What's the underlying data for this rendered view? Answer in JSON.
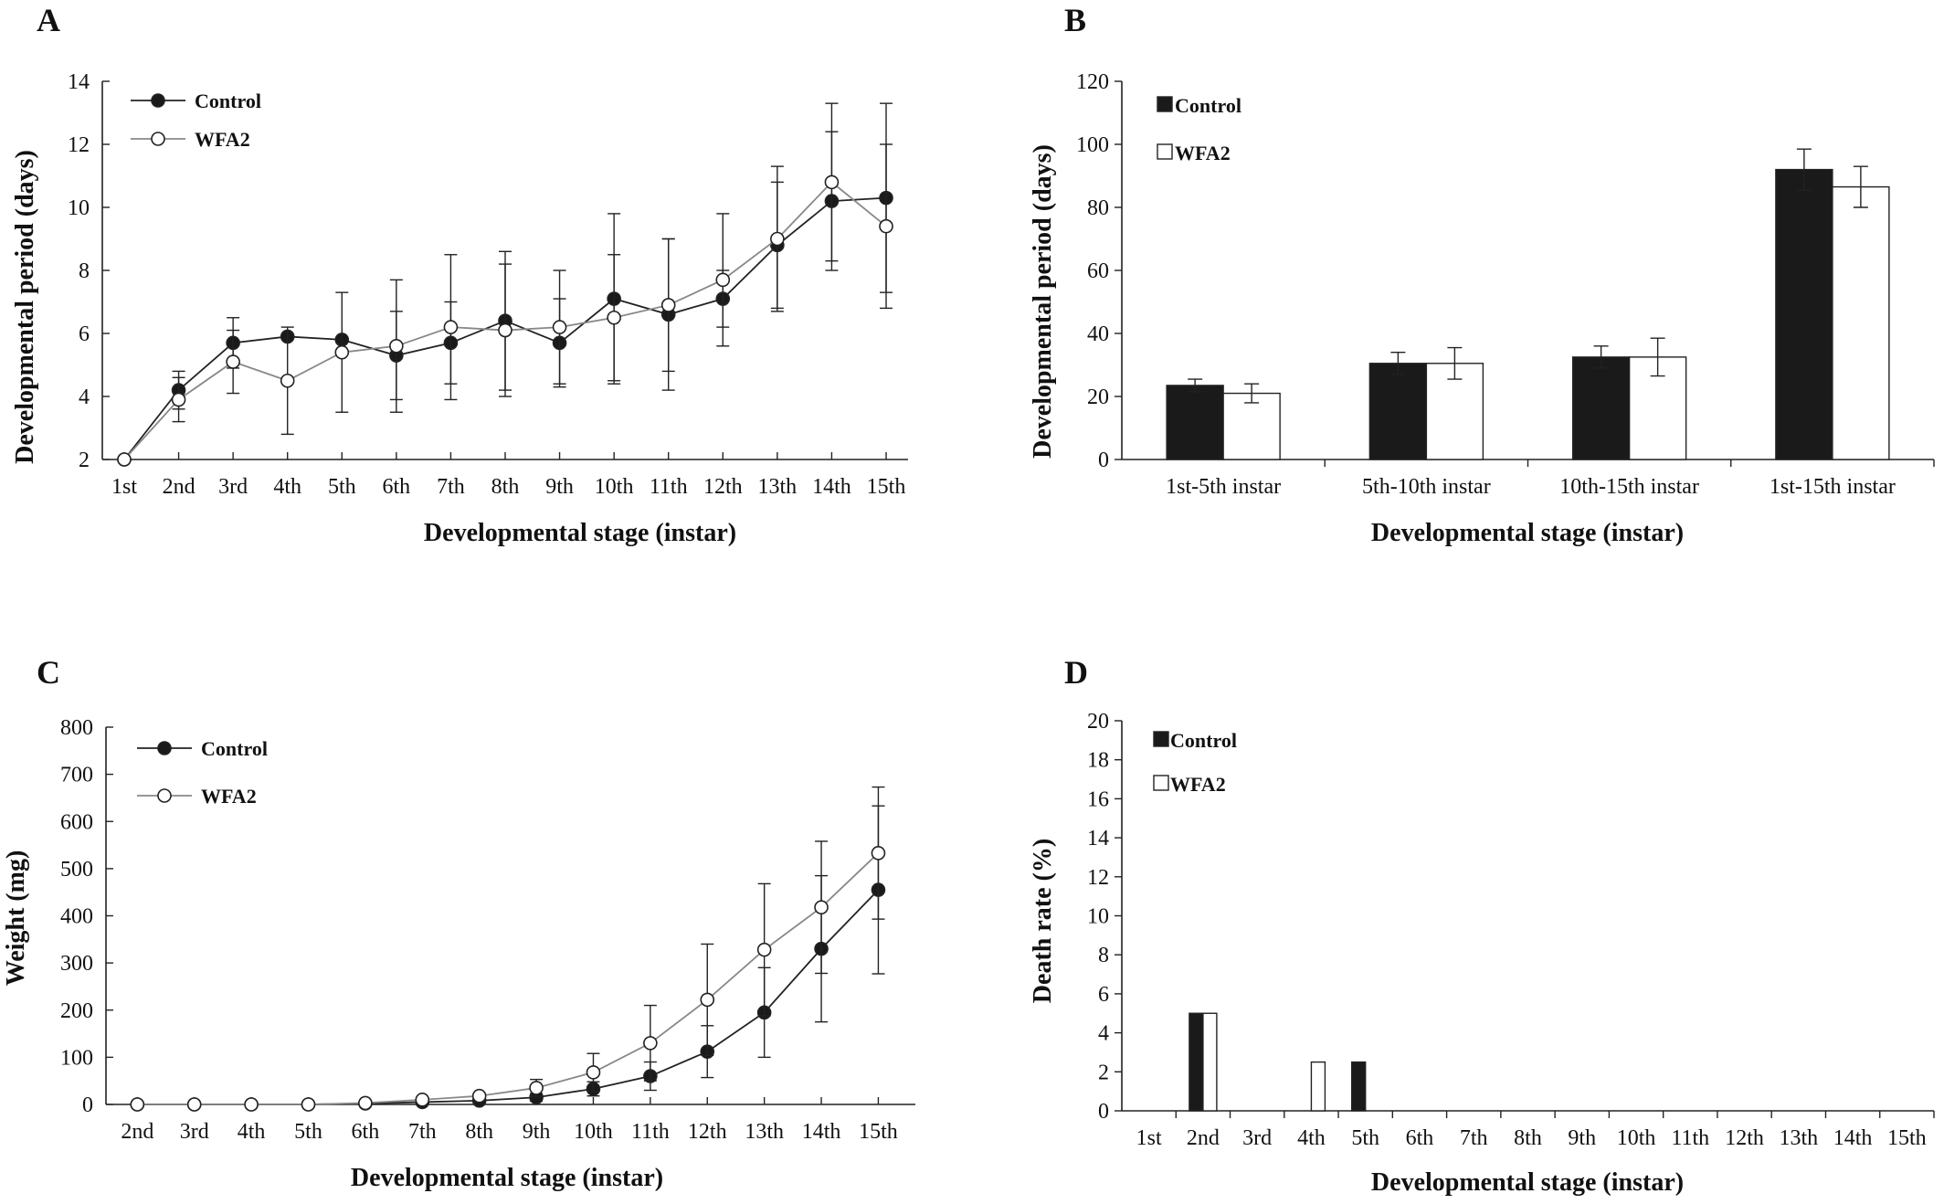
{
  "panels": [
    {
      "letter": "A",
      "chart_data": {
        "type": "line",
        "categories": [
          "1st",
          "2nd",
          "3rd",
          "4th",
          "5th",
          "6th",
          "7th",
          "8th",
          "9th",
          "10th",
          "11th",
          "12th",
          "13th",
          "14th",
          "15th"
        ],
        "xlabel": "Developmental stage (instar)",
        "ylabel": "Developmental period (days)",
        "ylim": [
          2,
          14
        ],
        "yticks": [
          2,
          4,
          6,
          8,
          10,
          12,
          14
        ],
        "legend_position": "top-left",
        "grid": false,
        "series": [
          {
            "name": "Control",
            "marker": "filled",
            "values": [
              2.0,
              4.2,
              5.7,
              5.9,
              5.8,
              5.3,
              5.7,
              6.4,
              5.7,
              7.1,
              6.6,
              7.1,
              8.8,
              10.2,
              10.3
            ],
            "errors": [
              0.0,
              0.6,
              0.8,
              0.0,
              0.0,
              1.4,
              1.3,
              2.2,
              1.4,
              2.7,
              2.4,
              0.9,
              2.0,
              2.2,
              3.0
            ],
            "color": "#222222"
          },
          {
            "name": "WFA2",
            "marker": "open",
            "values": [
              2.0,
              3.9,
              5.1,
              4.5,
              5.4,
              5.6,
              6.2,
              6.1,
              6.2,
              6.5,
              6.9,
              7.7,
              9.0,
              10.8,
              9.4
            ],
            "errors": [
              0.0,
              0.7,
              1.0,
              1.7,
              1.9,
              2.1,
              2.3,
              2.1,
              1.8,
              2.0,
              2.1,
              2.1,
              2.3,
              2.5,
              2.6
            ],
            "color": "#888888"
          }
        ]
      }
    },
    {
      "letter": "B",
      "chart_data": {
        "type": "bar",
        "categories": [
          "1st-5th instar",
          "5th-10th instar",
          "10th-15th instar",
          "1st-15th instar"
        ],
        "xlabel": "Developmental stage (instar)",
        "ylabel": "Developmental period (days)",
        "ylim": [
          0,
          120
        ],
        "yticks": [
          0,
          20,
          40,
          60,
          80,
          100,
          120
        ],
        "legend_position": "top-left",
        "grid": false,
        "series": [
          {
            "name": "Control",
            "fill": "#1a1a1a",
            "values": [
              23.5,
              30.5,
              32.5,
              92.0
            ],
            "errors": [
              2.0,
              3.5,
              3.5,
              6.5
            ]
          },
          {
            "name": "WFA2",
            "fill": "#ffffff",
            "values": [
              21.0,
              30.5,
              32.5,
              86.5
            ],
            "errors": [
              3.0,
              5.0,
              6.0,
              6.5
            ]
          }
        ]
      }
    },
    {
      "letter": "C",
      "chart_data": {
        "type": "line",
        "categories": [
          "2nd",
          "3rd",
          "4th",
          "5th",
          "6th",
          "7th",
          "8th",
          "9th",
          "10th",
          "11th",
          "12th",
          "13th",
          "14th",
          "15th"
        ],
        "xlabel": "Developmental stage (instar)",
        "ylabel": "Weight (mg)",
        "ylim": [
          0,
          800
        ],
        "yticks": [
          0,
          100,
          200,
          300,
          400,
          500,
          600,
          700,
          800
        ],
        "legend_position": "top-left",
        "grid": false,
        "series": [
          {
            "name": "Control",
            "marker": "filled",
            "values": [
              0,
              0,
              0,
              0,
              2,
              5,
              8,
              15,
              33,
              60,
              112,
              195,
              330,
              455
            ],
            "errors": [
              0,
              0,
              0,
              0,
              0,
              2,
              3,
              8,
              15,
              30,
              55,
              95,
              155,
              178
            ],
            "color": "#222222"
          },
          {
            "name": "WFA2",
            "marker": "open",
            "values": [
              0,
              0,
              0,
              0,
              3,
              10,
              18,
              35,
              68,
              130,
              222,
              328,
              418,
              533
            ],
            "errors": [
              0,
              0,
              0,
              0,
              0,
              3,
              4,
              18,
              40,
              80,
              118,
              140,
              140,
              140
            ],
            "color": "#888888"
          }
        ]
      }
    },
    {
      "letter": "D",
      "chart_data": {
        "type": "bar",
        "categories": [
          "1st",
          "2nd",
          "3rd",
          "4th",
          "5th",
          "6th",
          "7th",
          "8th",
          "9th",
          "10th",
          "11th",
          "12th",
          "13th",
          "14th",
          "15th"
        ],
        "xlabel": "Developmental stage (instar)",
        "ylabel": "Death rate (%)",
        "ylim": [
          0,
          20
        ],
        "yticks": [
          0,
          2,
          4,
          6,
          8,
          10,
          12,
          14,
          16,
          18,
          20
        ],
        "legend_position": "top-left",
        "grid": false,
        "series": [
          {
            "name": "Control",
            "fill": "#1a1a1a",
            "values": [
              0,
              5,
              0,
              0,
              2.5,
              0,
              0,
              0,
              0,
              0,
              0,
              0,
              0,
              0,
              0
            ]
          },
          {
            "name": "WFA2",
            "fill": "#ffffff",
            "values": [
              0,
              5,
              0,
              2.5,
              0,
              0,
              0,
              0,
              0,
              0,
              0,
              0,
              0,
              0,
              0
            ]
          }
        ]
      }
    }
  ]
}
